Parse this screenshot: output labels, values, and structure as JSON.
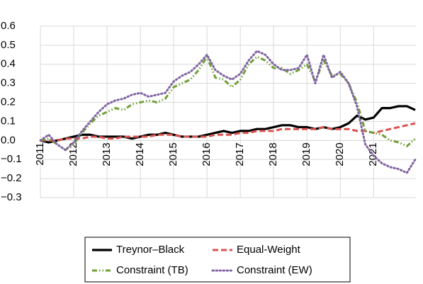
{
  "chart_data": {
    "type": "line",
    "x": [
      2011,
      2011.25,
      2011.5,
      2011.75,
      2012,
      2012.25,
      2012.5,
      2012.75,
      2013,
      2013.25,
      2013.5,
      2013.75,
      2014,
      2014.25,
      2014.5,
      2014.75,
      2015,
      2015.25,
      2015.5,
      2015.75,
      2016,
      2016.25,
      2016.5,
      2016.75,
      2017,
      2017.25,
      2017.5,
      2017.75,
      2018,
      2018.25,
      2018.5,
      2018.75,
      2019,
      2019.25,
      2019.5,
      2019.75,
      2020,
      2020.25,
      2020.5,
      2020.75,
      2021,
      2021.25,
      2021.5,
      2021.75,
      2022,
      2022.25
    ],
    "series": [
      {
        "name": "Treynor–Black",
        "color": "#000000",
        "dash": "solid",
        "values": [
          0,
          -0.01,
          0,
          0.01,
          0.02,
          0.03,
          0.03,
          0.02,
          0.02,
          0.02,
          0.02,
          0.01,
          0.02,
          0.03,
          0.03,
          0.04,
          0.03,
          0.02,
          0.02,
          0.02,
          0.03,
          0.04,
          0.05,
          0.04,
          0.05,
          0.05,
          0.06,
          0.06,
          0.07,
          0.08,
          0.08,
          0.07,
          0.07,
          0.06,
          0.07,
          0.06,
          0.07,
          0.09,
          0.13,
          0.11,
          0.12,
          0.17,
          0.17,
          0.18,
          0.18,
          0.16
        ]
      },
      {
        "name": "Equal-Weight",
        "color": "#d9534f",
        "dash": "dashed",
        "values": [
          0,
          0,
          0,
          0.01,
          0.01,
          0.01,
          0.02,
          0.02,
          0.01,
          0.01,
          0.02,
          0.02,
          0.02,
          0.02,
          0.03,
          0.03,
          0.03,
          0.02,
          0.02,
          0.02,
          0.02,
          0.03,
          0.03,
          0.03,
          0.04,
          0.04,
          0.05,
          0.05,
          0.05,
          0.06,
          0.06,
          0.06,
          0.06,
          0.06,
          0.07,
          0.06,
          0.06,
          0.06,
          0.05,
          0.05,
          0.04,
          0.05,
          0.06,
          0.07,
          0.08,
          0.09
        ]
      },
      {
        "name": "Constraint (TB)",
        "color": "#70a035",
        "dash": "dashdotdot",
        "values": [
          0,
          0.01,
          -0.02,
          -0.05,
          -0.02,
          0.04,
          0.09,
          0.13,
          0.15,
          0.17,
          0.16,
          0.19,
          0.2,
          0.21,
          0.2,
          0.22,
          0.28,
          0.3,
          0.32,
          0.37,
          0.44,
          0.33,
          0.32,
          0.28,
          0.32,
          0.4,
          0.44,
          0.42,
          0.38,
          0.38,
          0.35,
          0.37,
          0.4,
          0.31,
          0.42,
          0.34,
          0.35,
          0.3,
          0.2,
          0.05,
          0.04,
          0.03,
          0,
          -0.01,
          -0.03,
          0.01
        ]
      },
      {
        "name": "Constraint (EW)",
        "color": "#8064a2",
        "dash": "dotted",
        "values": [
          0,
          0.03,
          -0.02,
          -0.05,
          -0.01,
          0.05,
          0.1,
          0.15,
          0.19,
          0.21,
          0.22,
          0.24,
          0.25,
          0.23,
          0.24,
          0.25,
          0.31,
          0.34,
          0.36,
          0.4,
          0.45,
          0.37,
          0.34,
          0.32,
          0.35,
          0.42,
          0.47,
          0.45,
          0.4,
          0.37,
          0.37,
          0.38,
          0.45,
          0.3,
          0.45,
          0.33,
          0.36,
          0.3,
          0.18,
          -0.02,
          -0.08,
          -0.12,
          -0.14,
          -0.15,
          -0.17,
          -0.1
        ]
      }
    ],
    "xlim": [
      2011,
      2022.27
    ],
    "xticks": [
      2011,
      2012,
      2013,
      2014,
      2015,
      2016,
      2017,
      2018,
      2019,
      2020,
      2021
    ],
    "ylim": [
      -0.3,
      0.6
    ],
    "yticks": [
      0.6,
      0.5,
      0.4,
      0.3,
      0.2,
      0.1,
      {
        "value": 0,
        "label": "0.0"
      },
      {
        "value": -0.1,
        "label": "−0.1"
      },
      {
        "value": -0.2,
        "label": "−0.2"
      },
      {
        "value": -0.3,
        "label": "−0.3"
      }
    ],
    "grid": true,
    "legend_position": "bottom"
  }
}
